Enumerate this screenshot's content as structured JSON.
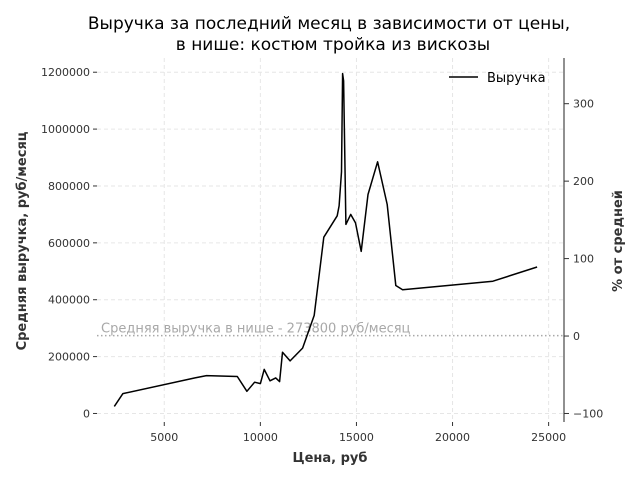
{
  "chart_data": {
    "type": "line",
    "title": "Выручка за последний месяц в зависимости от цены,",
    "subtitle": "в нише: костюм тройка из вискозы",
    "xlabel": "Цена, руб",
    "ylabel": "Средняя выручка, руб/месяц",
    "y2label": "% от средней",
    "xlim": [
      1500,
      25800
    ],
    "ylim": [
      -30000,
      1250000
    ],
    "y2lim": [
      -111,
      359
    ],
    "xticks": [
      "5000",
      "10000",
      "15000",
      "20000",
      "25000"
    ],
    "xtick_values": [
      5000,
      10000,
      15000,
      20000,
      25000
    ],
    "yticks": [
      "0",
      "200000",
      "400000",
      "600000",
      "800000",
      "1000000",
      "1200000"
    ],
    "ytick_values": [
      0,
      200000,
      400000,
      600000,
      800000,
      1000000,
      1200000
    ],
    "y2ticks": [
      "−100",
      "0",
      "100",
      "200",
      "300"
    ],
    "y2tick_values": [
      -100,
      0,
      100,
      200,
      300
    ],
    "grid": true,
    "legend_position": "top-right",
    "series": [
      {
        "name": "Выручка",
        "color": "#000000",
        "x": [
          2400,
          2850,
          6600,
          7200,
          8800,
          9300,
          9700,
          10000,
          10200,
          10500,
          10800,
          11000,
          11150,
          11550,
          12200,
          12800,
          13300,
          14000,
          14100,
          14220,
          14280,
          14330,
          14450,
          14700,
          14950,
          15250,
          15600,
          16100,
          16600,
          17050,
          17400,
          22100,
          24400
        ],
        "y": [
          25000,
          70000,
          125000,
          133000,
          130000,
          78000,
          110000,
          105000,
          155000,
          115000,
          125000,
          112000,
          215000,
          185000,
          230000,
          345000,
          620000,
          695000,
          730000,
          850000,
          1195000,
          1170000,
          665000,
          700000,
          670000,
          570000,
          770000,
          885000,
          735000,
          450000,
          435000,
          465000,
          515000
        ]
      }
    ],
    "reference_line": {
      "value": 273800,
      "label": "Средняя выручка в нише - 273800 руб/месяц",
      "color": "#a8a8a8"
    }
  }
}
